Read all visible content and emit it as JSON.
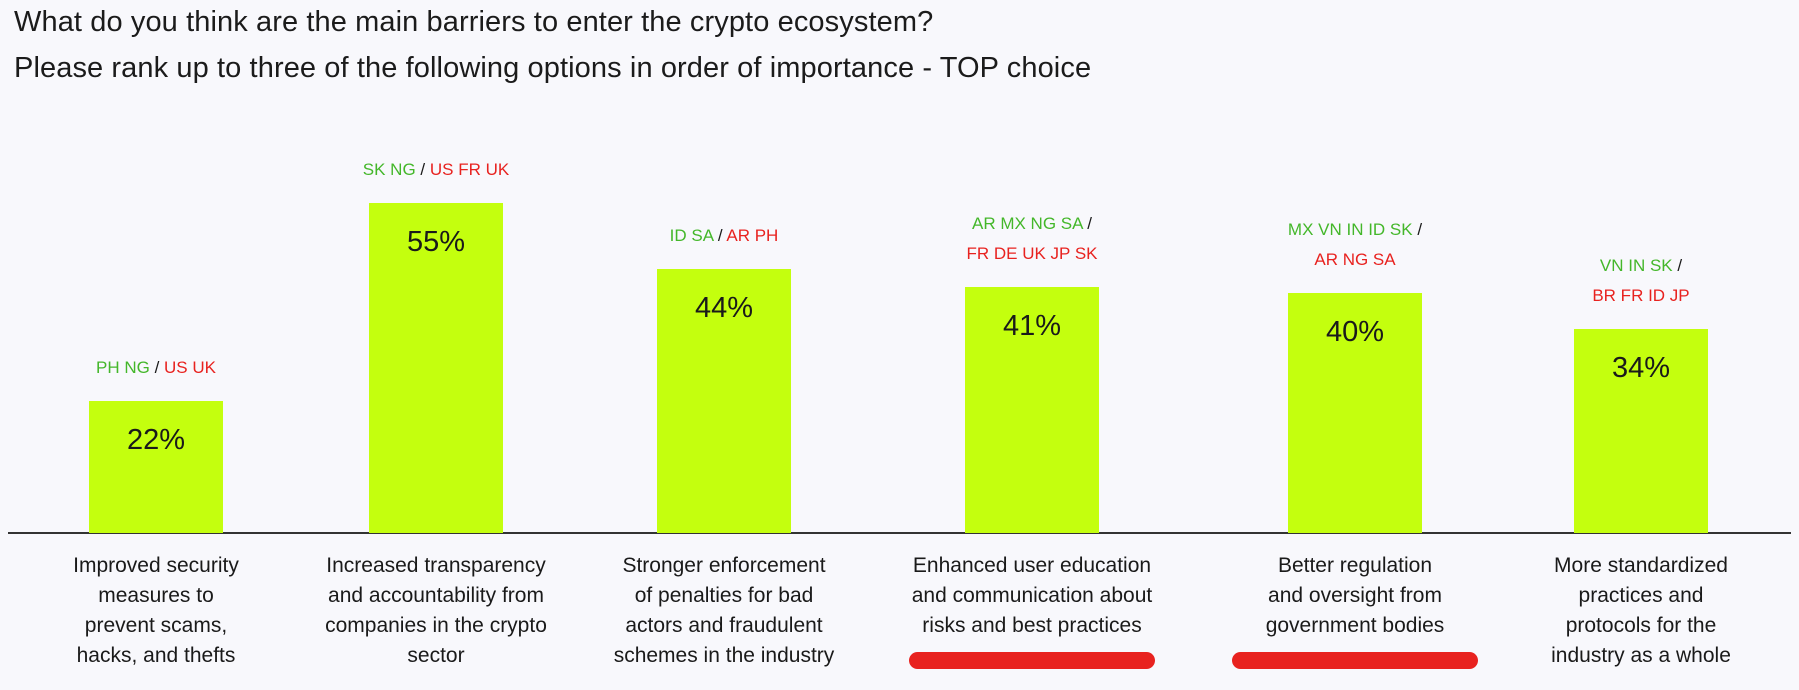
{
  "colors": {
    "bar": "#c4ff0e",
    "positive_countries": "#44b72a",
    "negative_countries": "#e8221f",
    "separator": "#1a1a1a",
    "highlight_underline": "#e8221f",
    "background": "#f8f8fc"
  },
  "chart_data": {
    "type": "bar",
    "title": "What do you think are the main barriers to enter the crypto ecosystem?",
    "subtitle": "Please rank up to three of the following options in order of importance - TOP choice",
    "ylim": [
      0,
      60
    ],
    "grid": false,
    "legend": "none",
    "categories": [
      "Improved security measures to prevent scams, hacks, and thefts",
      "Increased transparency and accountability from companies in the crypto sector",
      "Stronger enforcement of penalties for bad actors and fraudulent schemes in the industry",
      "Enhanced user education and communication about risks and best practices",
      "Better regulation and oversight from government bodies",
      "More standardized practices and protocols for the industry as a whole"
    ],
    "values": [
      22,
      55,
      44,
      41,
      40,
      34
    ],
    "value_labels": [
      "22%",
      "55%",
      "44%",
      "41%",
      "40%",
      "34%"
    ],
    "category_label_lines": [
      [
        "Improved security",
        "measures to",
        "prevent scams,",
        "hacks, and thefts"
      ],
      [
        "Increased transparency",
        "and accountability from",
        "companies in the crypto",
        "sector"
      ],
      [
        "Stronger enforcement",
        "of penalties for bad",
        "actors and fraudulent",
        "schemes in the industry"
      ],
      [
        "Enhanced user education",
        "and communication about",
        "risks and best practices"
      ],
      [
        "Better regulation",
        "and oversight from",
        "government bodies"
      ],
      [
        "More standardized",
        "practices and",
        "protocols for the",
        "industry as a whole"
      ]
    ],
    "annotations": [
      {
        "positive": [
          "PH NG"
        ],
        "negative": [
          "US UK"
        ]
      },
      {
        "positive": [
          "SK NG"
        ],
        "negative": [
          "US FR UK"
        ]
      },
      {
        "positive": [
          "ID SA"
        ],
        "negative": [
          "AR PH"
        ]
      },
      {
        "positive": [
          "AR MX NG SA"
        ],
        "negative": [
          "FR DE UK JP SK"
        ]
      },
      {
        "positive": [
          "MX VN IN ID SK"
        ],
        "negative": [
          "AR NG SA"
        ]
      },
      {
        "positive": [
          "VN IN SK"
        ],
        "negative": [
          "BR FR ID JP"
        ]
      }
    ],
    "highlighted": [
      false,
      false,
      false,
      true,
      true,
      false
    ]
  }
}
